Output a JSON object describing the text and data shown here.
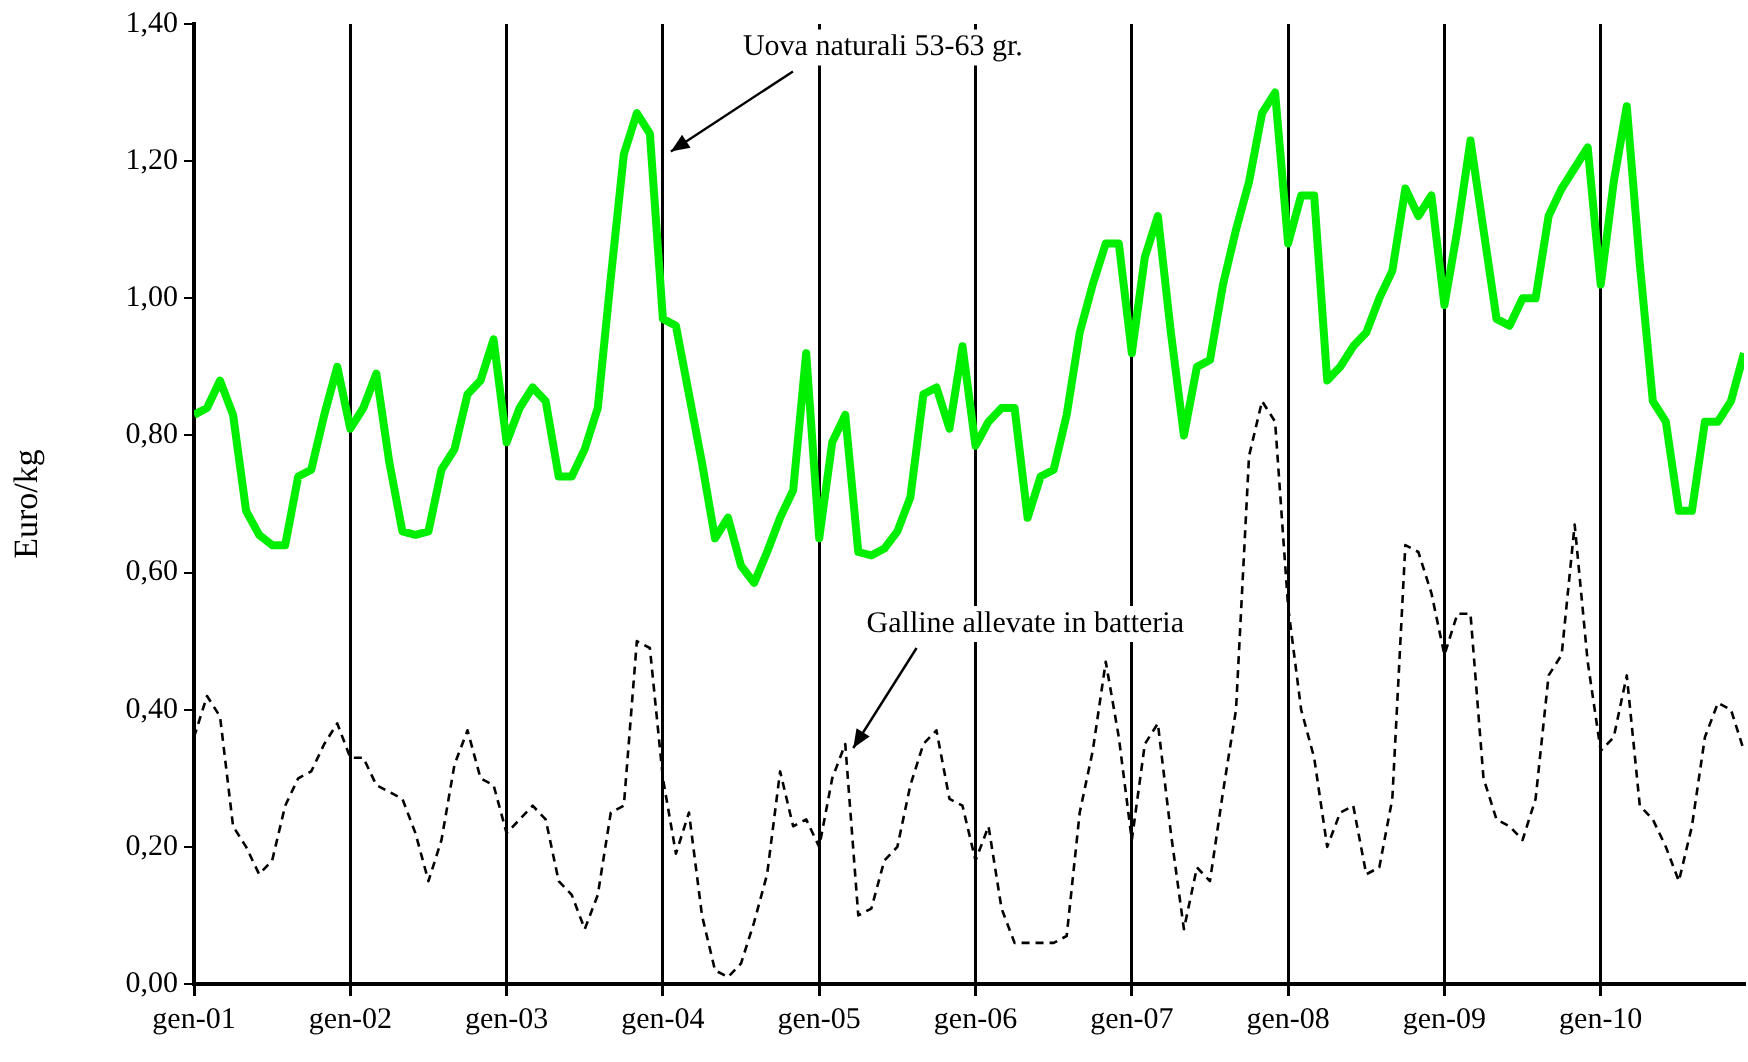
{
  "chart_data": {
    "type": "line",
    "ylabel": "Euro/kg",
    "legend": false,
    "grid": "x",
    "marker": "none",
    "x": [
      "2001-01",
      "2001-02",
      "2001-03",
      "2001-04",
      "2001-05",
      "2001-06",
      "2001-07",
      "2001-08",
      "2001-09",
      "2001-10",
      "2001-11",
      "2001-12",
      "2002-01",
      "2002-02",
      "2002-03",
      "2002-04",
      "2002-05",
      "2002-06",
      "2002-07",
      "2002-08",
      "2002-09",
      "2002-10",
      "2002-11",
      "2002-12",
      "2003-01",
      "2003-02",
      "2003-03",
      "2003-04",
      "2003-05",
      "2003-06",
      "2003-07",
      "2003-08",
      "2003-09",
      "2003-10",
      "2003-11",
      "2003-12",
      "2004-01",
      "2004-02",
      "2004-03",
      "2004-04",
      "2004-05",
      "2004-06",
      "2004-07",
      "2004-08",
      "2004-09",
      "2004-10",
      "2004-11",
      "2004-12",
      "2005-01",
      "2005-02",
      "2005-03",
      "2005-04",
      "2005-05",
      "2005-06",
      "2005-07",
      "2005-08",
      "2005-09",
      "2005-10",
      "2005-11",
      "2005-12",
      "2006-01",
      "2006-02",
      "2006-03",
      "2006-04",
      "2006-05",
      "2006-06",
      "2006-07",
      "2006-08",
      "2006-09",
      "2006-10",
      "2006-11",
      "2006-12",
      "2007-01",
      "2007-02",
      "2007-03",
      "2007-04",
      "2007-05",
      "2007-06",
      "2007-07",
      "2007-08",
      "2007-09",
      "2007-10",
      "2007-11",
      "2007-12",
      "2008-01",
      "2008-02",
      "2008-03",
      "2008-04",
      "2008-05",
      "2008-06",
      "2008-07",
      "2008-08",
      "2008-09",
      "2008-10",
      "2008-11",
      "2008-12",
      "2009-01",
      "2009-02",
      "2009-03",
      "2009-04",
      "2009-05",
      "2009-06",
      "2009-07",
      "2009-08",
      "2009-09",
      "2009-10",
      "2009-11",
      "2009-12",
      "2010-01",
      "2010-02",
      "2010-03",
      "2010-04",
      "2010-05",
      "2010-06",
      "2010-07",
      "2010-08",
      "2010-09",
      "2010-10",
      "2010-11",
      "2010-12"
    ],
    "series": [
      {
        "color": "#00ee00",
        "line_style": "solid",
        "values": [
          0.83,
          0.84,
          0.88,
          0.83,
          0.69,
          0.655,
          0.64,
          0.64,
          0.74,
          0.75,
          0.83,
          0.9,
          0.81,
          0.84,
          0.89,
          0.76,
          0.66,
          0.655,
          0.66,
          0.75,
          0.78,
          0.86,
          0.88,
          0.94,
          0.79,
          0.84,
          0.87,
          0.85,
          0.74,
          0.74,
          0.78,
          0.84,
          1.03,
          1.21,
          1.27,
          1.24,
          0.97,
          0.96,
          0.86,
          0.76,
          0.65,
          0.68,
          0.61,
          0.585,
          0.63,
          0.68,
          0.72,
          0.92,
          0.65,
          0.79,
          0.83,
          0.63,
          0.625,
          0.635,
          0.66,
          0.71,
          0.86,
          0.87,
          0.81,
          0.93,
          0.785,
          0.82,
          0.84,
          0.84,
          0.68,
          0.74,
          0.75,
          0.83,
          0.95,
          1.02,
          1.08,
          1.08,
          0.92,
          1.06,
          1.12,
          0.95,
          0.8,
          0.9,
          0.91,
          1.02,
          1.1,
          1.17,
          1.27,
          1.3,
          1.08,
          1.15,
          1.15,
          0.88,
          0.9,
          0.93,
          0.95,
          1.0,
          1.04,
          1.16,
          1.12,
          1.15,
          0.99,
          1.1,
          1.23,
          1.1,
          0.97,
          0.96,
          1.0,
          1.0,
          1.12,
          1.16,
          1.19,
          1.22,
          1.02,
          1.17,
          1.28,
          1.05,
          0.85,
          0.82,
          0.69,
          0.69,
          0.82,
          0.82,
          0.85,
          0.92
        ]
      },
      {
        "color": "#000000",
        "line_style": "dashed",
        "values": [
          0.36,
          0.42,
          0.39,
          0.23,
          0.2,
          0.16,
          0.18,
          0.26,
          0.3,
          0.31,
          0.35,
          0.38,
          0.33,
          0.33,
          0.29,
          0.28,
          0.27,
          0.22,
          0.15,
          0.21,
          0.32,
          0.37,
          0.3,
          0.29,
          0.22,
          0.24,
          0.26,
          0.24,
          0.15,
          0.13,
          0.08,
          0.13,
          0.25,
          0.26,
          0.5,
          0.49,
          0.3,
          0.19,
          0.25,
          0.1,
          0.02,
          0.01,
          0.03,
          0.09,
          0.16,
          0.31,
          0.23,
          0.24,
          0.2,
          0.3,
          0.35,
          0.1,
          0.11,
          0.18,
          0.2,
          0.29,
          0.35,
          0.37,
          0.27,
          0.26,
          0.18,
          0.23,
          0.11,
          0.06,
          0.06,
          0.06,
          0.06,
          0.07,
          0.25,
          0.34,
          0.47,
          0.36,
          0.21,
          0.35,
          0.38,
          0.22,
          0.08,
          0.17,
          0.15,
          0.28,
          0.4,
          0.77,
          0.85,
          0.82,
          0.55,
          0.4,
          0.33,
          0.2,
          0.25,
          0.26,
          0.16,
          0.17,
          0.27,
          0.64,
          0.63,
          0.57,
          0.48,
          0.54,
          0.54,
          0.3,
          0.24,
          0.23,
          0.21,
          0.27,
          0.45,
          0.48,
          0.67,
          0.47,
          0.34,
          0.36,
          0.45,
          0.26,
          0.24,
          0.2,
          0.15,
          0.23,
          0.36,
          0.41,
          0.4,
          0.34
        ]
      }
    ],
    "xlim": [
      "2001-01",
      "2010-12"
    ],
    "xticks": [
      {
        "value": "2001-01",
        "label": "gen-01"
      },
      {
        "value": "2002-01",
        "label": "gen-02"
      },
      {
        "value": "2003-01",
        "label": "gen-03"
      },
      {
        "value": "2004-01",
        "label": "gen-04"
      },
      {
        "value": "2005-01",
        "label": "gen-05"
      },
      {
        "value": "2006-01",
        "label": "gen-06"
      },
      {
        "value": "2007-01",
        "label": "gen-07"
      },
      {
        "value": "2008-01",
        "label": "gen-08"
      },
      {
        "value": "2009-01",
        "label": "gen-09"
      },
      {
        "value": "2010-01",
        "label": "gen-10"
      }
    ],
    "ylim": [
      0,
      1.4
    ],
    "yticks": [
      {
        "value": 0,
        "label": "0,00"
      },
      {
        "value": 0.2,
        "label": "0,20"
      },
      {
        "value": 0.4,
        "label": "0,40"
      },
      {
        "value": 0.6,
        "label": "0,60"
      },
      {
        "value": 0.8,
        "label": "0,80"
      },
      {
        "value": 1.0,
        "label": "1,00"
      },
      {
        "value": 1.2,
        "label": "1,20"
      },
      {
        "value": 1.4,
        "label": "1,40"
      }
    ],
    "annotations": [
      {
        "text": "Uova naturali 53-63 gr.",
        "x": "2004-01",
        "y": 1.22
      },
      {
        "text": "Galline allevate in batteria",
        "x": "2005-03",
        "y": 0.35
      }
    ]
  }
}
